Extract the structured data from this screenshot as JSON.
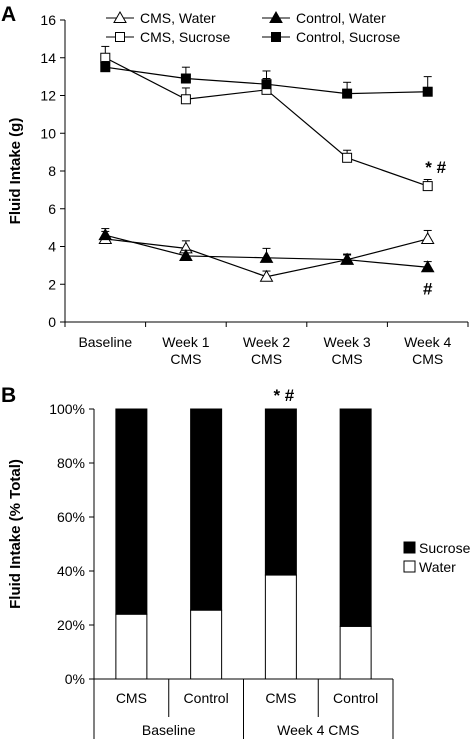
{
  "figure": {
    "panel_a_label": "A",
    "panel_b_label": "B"
  },
  "chart_data": [
    {
      "type": "line",
      "panel": "A",
      "ylabel": "Fluid Intake (g)",
      "xlabel": "",
      "ylim": [
        0,
        16
      ],
      "yticks": [
        "0",
        "2",
        "4",
        "6",
        "8",
        "10",
        "12",
        "14",
        "16"
      ],
      "categories": [
        "Baseline",
        "Week 1\nCMS",
        "Week 2\nCMS",
        "Week 3\nCMS",
        "Week 4\nCMS"
      ],
      "grid": false,
      "legend_position": "top",
      "series": [
        {
          "name": "CMS, Water",
          "marker": "open-triangle",
          "values": [
            4.4,
            3.9,
            2.4,
            3.3,
            4.4
          ],
          "errors": [
            0.4,
            0.4,
            0.3,
            0.3,
            0.45
          ]
        },
        {
          "name": "Control, Water",
          "marker": "filled-triangle",
          "values": [
            4.6,
            3.5,
            3.4,
            3.3,
            2.9
          ],
          "errors": [
            0.35,
            0.3,
            0.5,
            0.25,
            0.3
          ]
        },
        {
          "name": "CMS, Sucrose",
          "marker": "open-square",
          "values": [
            14.0,
            11.8,
            12.3,
            8.7,
            7.2
          ],
          "errors": [
            0.6,
            0.6,
            0.6,
            0.4,
            0.35
          ]
        },
        {
          "name": "Control, Sucrose",
          "marker": "filled-square",
          "values": [
            13.5,
            12.9,
            12.6,
            12.1,
            12.2
          ],
          "errors": [
            0.3,
            0.6,
            0.7,
            0.6,
            0.8
          ]
        }
      ],
      "annotations": [
        {
          "text": "* #",
          "series": "CMS, Sucrose",
          "category_index": 4
        },
        {
          "text": "#",
          "series": "Control, Water",
          "category_index": 4
        }
      ]
    },
    {
      "type": "bar",
      "stacked": true,
      "panel": "B",
      "ylabel": "Fluid Intake (% Total)",
      "xlabel": "",
      "ylim": [
        0,
        100
      ],
      "yticks": [
        "0%",
        "20%",
        "40%",
        "60%",
        "80%",
        "100%"
      ],
      "categories": [
        "CMS",
        "Control",
        "CMS",
        "Control"
      ],
      "groups": [
        {
          "label": "Baseline",
          "span": [
            0,
            1
          ]
        },
        {
          "label": "Week 4 CMS",
          "span": [
            2,
            3
          ]
        }
      ],
      "legend_position": "right",
      "series": [
        {
          "name": "Water",
          "color": "#ffffff",
          "values": [
            24,
            25.5,
            38.5,
            19.5
          ]
        },
        {
          "name": "Sucrose",
          "color": "#000000",
          "values": [
            76,
            74.5,
            61.5,
            80.5
          ]
        }
      ],
      "legend_order": [
        "Sucrose",
        "Water"
      ],
      "annotations": [
        {
          "text": "* #",
          "category_index": 2
        }
      ]
    }
  ]
}
